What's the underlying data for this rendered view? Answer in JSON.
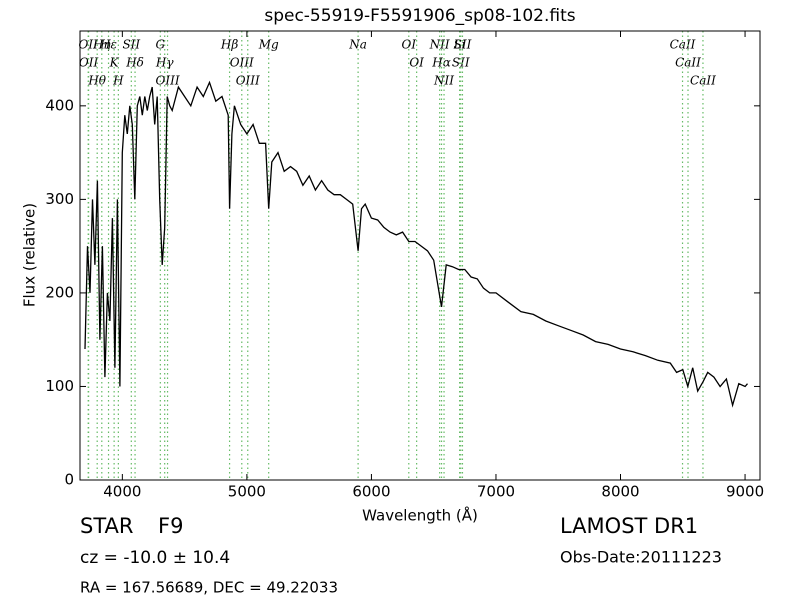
{
  "chart_data": {
    "type": "line",
    "title": "spec-55919-F5591906_sp08-102.fits",
    "x_label": "Wavelength (Å)",
    "y_label": "Flux (relative)",
    "xlim": [
      3660,
      9120
    ],
    "ylim": [
      0,
      480
    ],
    "xticks": [
      4000,
      5000,
      6000,
      7000,
      8000,
      9000
    ],
    "yticks": [
      0,
      100,
      200,
      300,
      400
    ],
    "line_color": "#000000",
    "marker_line_color": "#66bb66",
    "x": [
      3700,
      3720,
      3740,
      3760,
      3780,
      3800,
      3820,
      3840,
      3860,
      3880,
      3900,
      3920,
      3940,
      3960,
      3980,
      4000,
      4020,
      4040,
      4060,
      4080,
      4100,
      4120,
      4140,
      4160,
      4180,
      4200,
      4220,
      4240,
      4260,
      4280,
      4300,
      4320,
      4340,
      4360,
      4380,
      4400,
      4450,
      4500,
      4550,
      4600,
      4650,
      4700,
      4750,
      4800,
      4850,
      4861,
      4880,
      4900,
      4950,
      5000,
      5050,
      5100,
      5150,
      5175,
      5200,
      5250,
      5300,
      5350,
      5400,
      5450,
      5500,
      5550,
      5600,
      5650,
      5700,
      5750,
      5800,
      5850,
      5893,
      5920,
      5950,
      6000,
      6050,
      6100,
      6150,
      6200,
      6250,
      6300,
      6350,
      6400,
      6450,
      6500,
      6563,
      6600,
      6650,
      6700,
      6750,
      6800,
      6850,
      6900,
      6950,
      7000,
      7100,
      7200,
      7300,
      7400,
      7500,
      7600,
      7700,
      7800,
      7900,
      8000,
      8100,
      8200,
      8300,
      8400,
      8450,
      8500,
      8540,
      8580,
      8620,
      8662,
      8700,
      8750,
      8800,
      8850,
      8900,
      8950,
      9000,
      9020
    ],
    "values": [
      140,
      250,
      200,
      300,
      230,
      320,
      150,
      250,
      110,
      200,
      170,
      280,
      120,
      300,
      100,
      350,
      390,
      370,
      400,
      380,
      300,
      400,
      410,
      390,
      410,
      395,
      410,
      420,
      380,
      410,
      300,
      230,
      270,
      410,
      400,
      395,
      420,
      410,
      400,
      420,
      410,
      425,
      405,
      410,
      390,
      290,
      370,
      400,
      380,
      370,
      380,
      360,
      360,
      290,
      340,
      350,
      330,
      335,
      330,
      315,
      325,
      310,
      320,
      310,
      305,
      305,
      300,
      295,
      245,
      290,
      295,
      280,
      278,
      270,
      265,
      262,
      265,
      255,
      255,
      250,
      245,
      235,
      185,
      230,
      228,
      225,
      225,
      217,
      215,
      205,
      200,
      200,
      190,
      180,
      177,
      170,
      165,
      160,
      155,
      148,
      145,
      140,
      137,
      133,
      128,
      125,
      115,
      118,
      100,
      120,
      95,
      105,
      115,
      110,
      100,
      108,
      80,
      103,
      100,
      103
    ],
    "annotations": [
      {
        "label": "OII",
        "x": 3726
      },
      {
        "label": "OII",
        "x": 3729
      },
      {
        "label": "Hθ",
        "x": 3798
      },
      {
        "label": "Hη",
        "x": 3835
      },
      {
        "label": "Hε",
        "x": 3889
      },
      {
        "label": "K",
        "x": 3934
      },
      {
        "label": "H",
        "x": 3968
      },
      {
        "label": "SII",
        "x": 4072
      },
      {
        "label": "Hδ",
        "x": 4102
      },
      {
        "label": "G",
        "x": 4305
      },
      {
        "label": "Hγ",
        "x": 4340
      },
      {
        "label": "OIII",
        "x": 4363
      },
      {
        "label": "Hβ",
        "x": 4861
      },
      {
        "label": "OIII",
        "x": 4959
      },
      {
        "label": "OIII",
        "x": 5007
      },
      {
        "label": "Mg",
        "x": 5175
      },
      {
        "label": "Na",
        "x": 5893
      },
      {
        "label": "OI",
        "x": 6300
      },
      {
        "label": "OI",
        "x": 6363
      },
      {
        "label": "NII",
        "x": 6548
      },
      {
        "label": "Hα",
        "x": 6563
      },
      {
        "label": "NII",
        "x": 6583
      },
      {
        "label": "Li",
        "x": 6708
      },
      {
        "label": "SII",
        "x": 6717
      },
      {
        "label": "SII",
        "x": 6731
      },
      {
        "label": "CaII",
        "x": 8498
      },
      {
        "label": "CaII",
        "x": 8542
      },
      {
        "label": "CaII",
        "x": 8662
      }
    ]
  },
  "info": {
    "class": "STAR",
    "subclass": "F9",
    "redshift": "cz = -10.0 ± 10.4",
    "coords": "RA = 167.56689, DEC = 49.22033",
    "survey": "LAMOST DR1",
    "obs_date": "Obs-Date:20111223"
  }
}
